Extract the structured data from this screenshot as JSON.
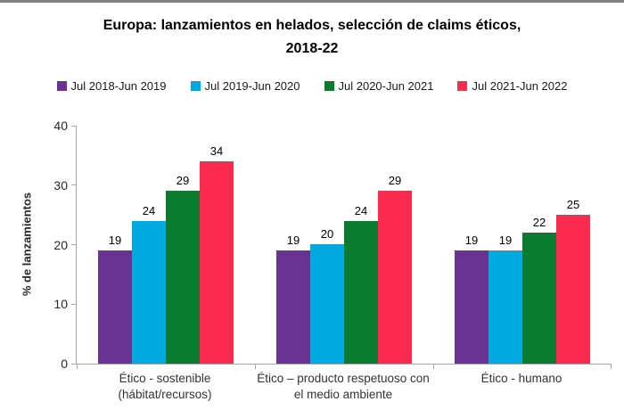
{
  "page": {
    "background": "#ffffff",
    "top_border_color": "#7f7f7f"
  },
  "chart_data": {
    "type": "bar",
    "title": "Europa: lanzamientos en helados, selección de claims éticos, 2018-22",
    "title_lines": [
      "Europa: lanzamientos en helados, selección de claims éticos,",
      "2018-22"
    ],
    "ylabel": "% de lanzamientos",
    "xlabel": "",
    "ylim": [
      0,
      40
    ],
    "yticks": [
      0,
      10,
      20,
      30,
      40
    ],
    "grid": false,
    "legend_position": "top",
    "axis_color": "#a6a6a6",
    "data_labels": true,
    "categories": [
      "Ético - sostenible (hábitat/recursos)",
      "Ético – producto respetuoso con el medio ambiente",
      "Ético - humano"
    ],
    "series": [
      {
        "name": "Jul 2018-Jun 2019",
        "color": "#6a3293",
        "values": [
          19,
          19,
          19
        ]
      },
      {
        "name": "Jul 2019-Jun 2020",
        "color": "#00a9e0",
        "values": [
          24,
          20,
          19
        ]
      },
      {
        "name": "Jul 2020-Jun 2021",
        "color": "#0b7c2f",
        "values": [
          29,
          24,
          22
        ]
      },
      {
        "name": "Jul 2021-Jun 2022",
        "color": "#fb2b50",
        "values": [
          34,
          29,
          25
        ]
      }
    ]
  }
}
